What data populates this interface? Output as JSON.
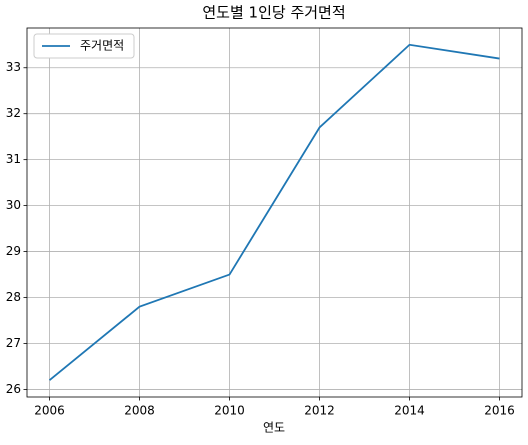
{
  "chart_data": {
    "type": "line",
    "title": "연도별 1인당 주거면적",
    "x_label": "연도",
    "x": [
      2006,
      2008,
      2010,
      2012,
      2014,
      2016
    ],
    "series": [
      {
        "name": "주거면적",
        "color": "#1f77b4",
        "values": [
          26.2,
          27.8,
          28.5,
          31.7,
          33.5,
          33.2
        ]
      }
    ],
    "xlim": [
      2005.5,
      2016.5
    ],
    "xticks": [
      2006,
      2008,
      2010,
      2012,
      2014,
      2016
    ],
    "ylim": [
      25.835,
      33.865
    ],
    "yticks": [
      26,
      27,
      28,
      29,
      30,
      31,
      32,
      33
    ],
    "grid": true,
    "legend": "upper left"
  }
}
